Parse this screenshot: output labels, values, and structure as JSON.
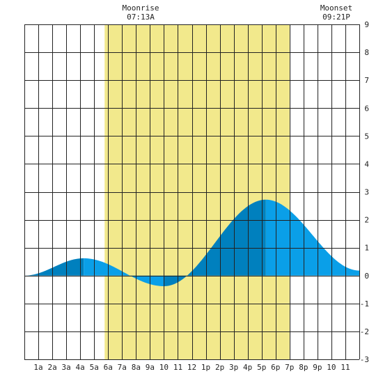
{
  "moon": {
    "rise_label": "Moonrise",
    "rise_time": "07:13A",
    "set_label": "Moonset",
    "set_time": "09:21P"
  },
  "chart_data": {
    "type": "area",
    "title": "",
    "xlabel": "",
    "ylabel": "",
    "xlim": [
      0,
      24
    ],
    "ylim": [
      -3,
      9
    ],
    "grid": true,
    "x_tick_labels": [
      "1a",
      "2a",
      "3a",
      "4a",
      "5a",
      "6a",
      "7a",
      "8a",
      "9a",
      "10",
      "11",
      "12",
      "1p",
      "2p",
      "3p",
      "4p",
      "5p",
      "6p",
      "7p",
      "8p",
      "9p",
      "10",
      "11"
    ],
    "y_tick_labels": [
      "9",
      "8",
      "7",
      "6",
      "5",
      "4",
      "3",
      "2",
      "1",
      "0",
      "-1",
      "-2",
      "-3"
    ],
    "daylight_band": {
      "start_hour": 5.75,
      "end_hour": 19.0,
      "color": "#f2e98c"
    },
    "tide_extrema": [
      {
        "hour": 0.0,
        "height": 0.0
      },
      {
        "hour": 4.25,
        "height": 0.62
      },
      {
        "hour": 10.0,
        "height": -0.38
      },
      {
        "hour": 17.3,
        "height": 2.72
      },
      {
        "hour": 24.0,
        "height": 0.18
      }
    ],
    "colors": {
      "tide_light": "#0a9fe8",
      "tide_dark": "#0080be",
      "grid": "#222222",
      "background": "#ffffff"
    }
  }
}
